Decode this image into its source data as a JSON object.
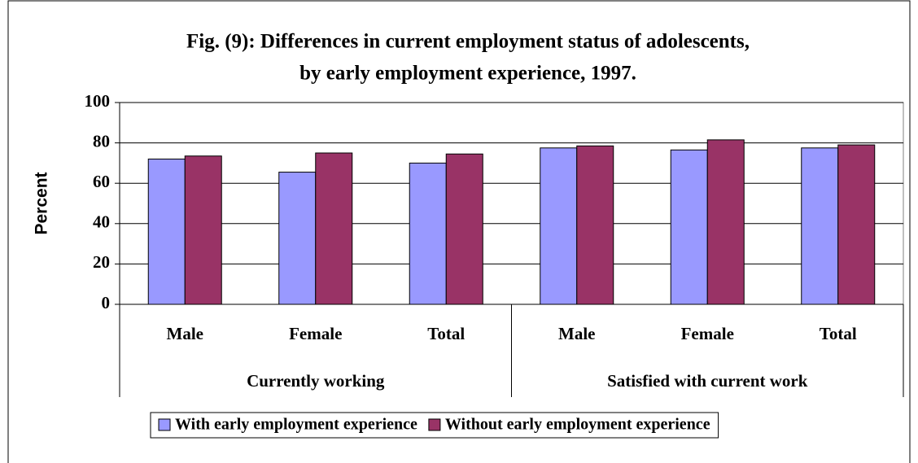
{
  "chart_data": {
    "type": "bar",
    "title": "Fig. (9): Differences in current employment status of adolescents,",
    "subtitle": "by early employment experience, 1997.",
    "y_label": "Percent",
    "categories": [
      "Male",
      "Female",
      "Total",
      "Male",
      "Female",
      "Total"
    ],
    "category_groups": [
      "Currently working",
      "Satisfied with current work"
    ],
    "series": [
      {
        "name": "With early employment experience",
        "color": "#9999ff",
        "values": [
          72,
          65.5,
          70,
          77.5,
          76.5,
          77.5
        ]
      },
      {
        "name": "Without early employment experience",
        "color": "#993366",
        "values": [
          73.5,
          75,
          74.5,
          78.5,
          81.5,
          79
        ]
      }
    ],
    "ylim": [
      0,
      100
    ],
    "yticks": [
      0,
      20,
      40,
      60,
      80,
      100
    ],
    "grid": true,
    "legend": "bottom"
  }
}
